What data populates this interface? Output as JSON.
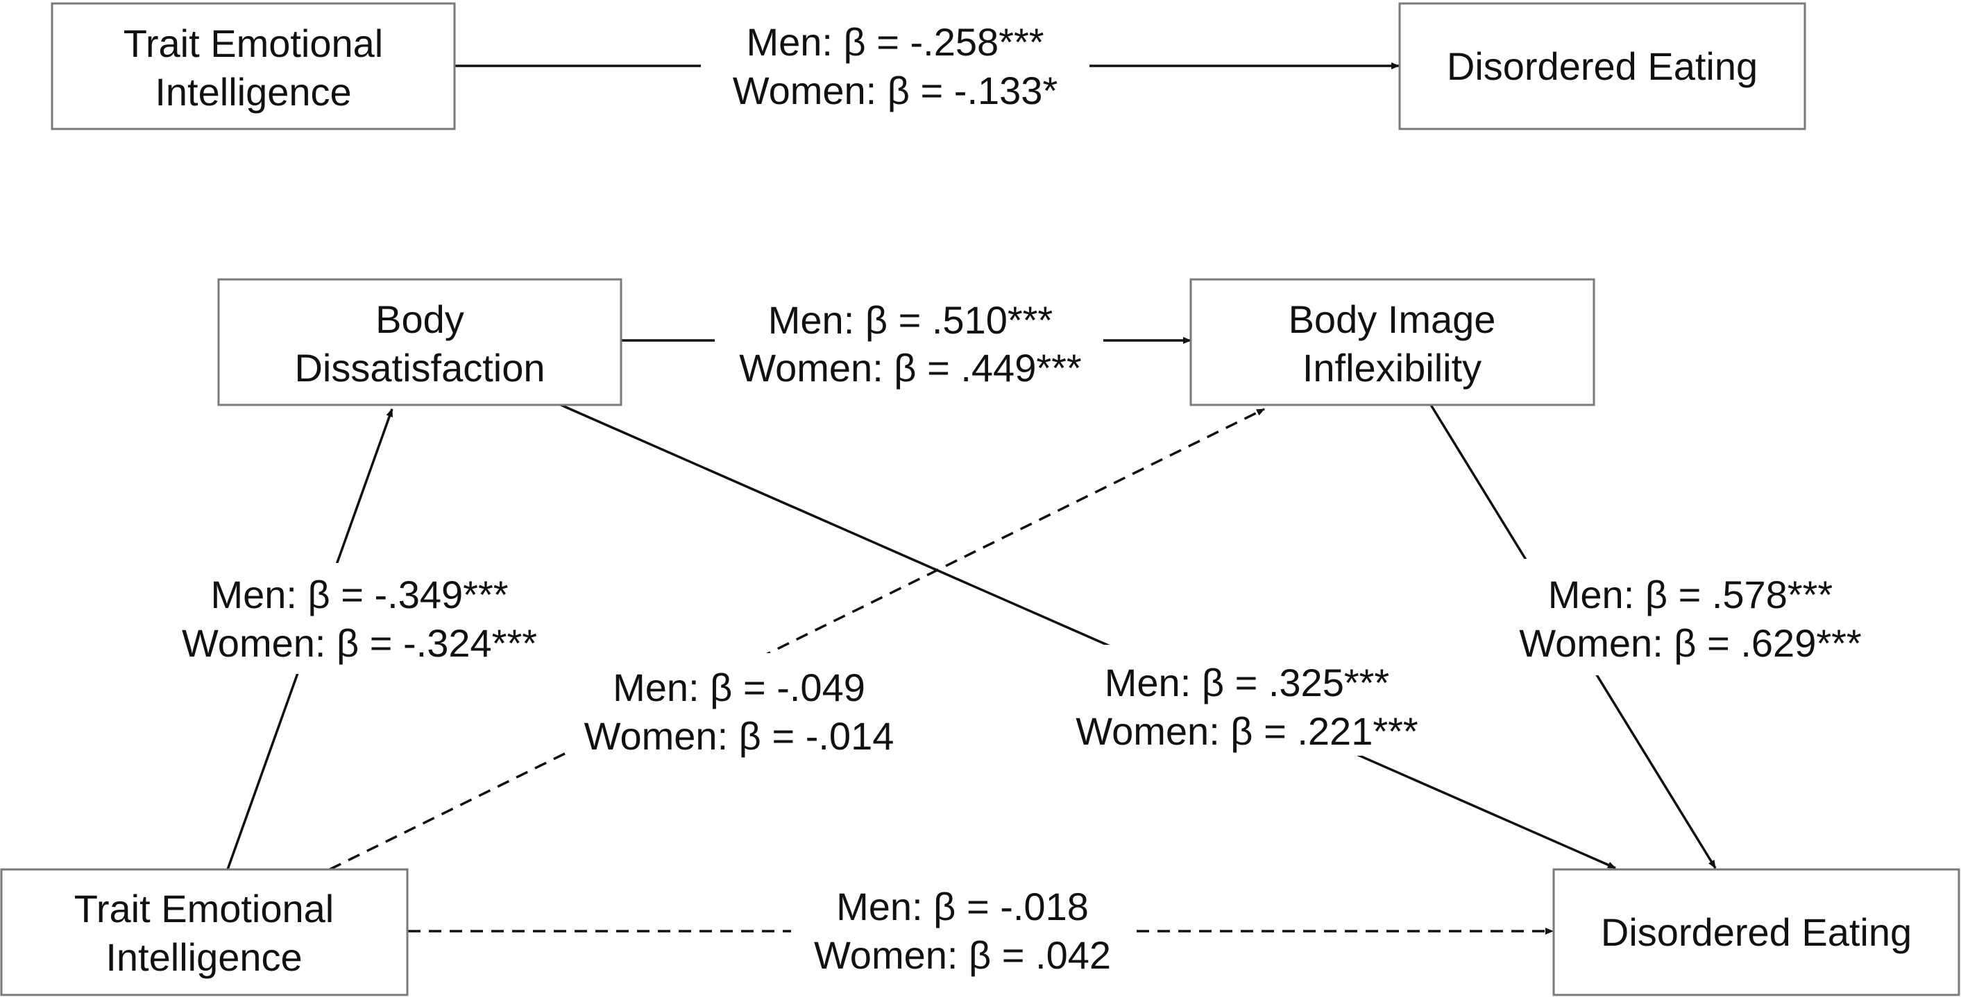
{
  "top_model": {
    "nodes": {
      "tei": {
        "lines": [
          "Trait Emotional",
          "Intelligence"
        ]
      },
      "de": {
        "lines": [
          "Disordered Eating"
        ]
      }
    },
    "edges": {
      "tei_de": {
        "lines": [
          "Men: β = -.258***",
          "Women: β = -.133*"
        ]
      }
    }
  },
  "mediation_model": {
    "nodes": {
      "bd": {
        "lines": [
          "Body",
          "Dissatisfaction"
        ]
      },
      "bii": {
        "lines": [
          "Body Image",
          "Inflexibility"
        ]
      },
      "tei": {
        "lines": [
          "Trait Emotional",
          "Intelligence"
        ]
      },
      "de": {
        "lines": [
          "Disordered Eating"
        ]
      }
    },
    "edges": {
      "bd_bii": {
        "lines": [
          "Men: β = .510***",
          "Women: β = .449***"
        ]
      },
      "tei_bd": {
        "lines": [
          "Men: β = -.349***",
          "Women: β = -.324***"
        ]
      },
      "tei_bii": {
        "lines": [
          "Men: β = -.049",
          "Women: β = -.014"
        ]
      },
      "bd_de": {
        "lines": [
          "Men: β = .325***",
          "Women: β = .221***"
        ]
      },
      "bii_de": {
        "lines": [
          "Men: β = .578***",
          "Women: β = .629***"
        ]
      },
      "tei_de": {
        "lines": [
          "Men: β = -.018",
          "Women: β = .042"
        ]
      }
    }
  }
}
